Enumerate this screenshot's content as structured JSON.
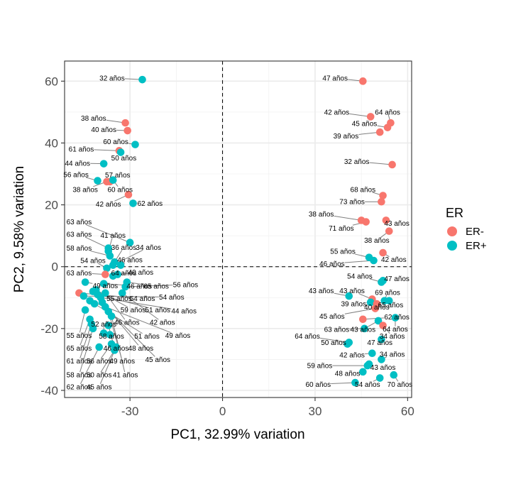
{
  "chart_data": {
    "type": "scatter",
    "title": "",
    "xlabel": "PC1, 32.99% variation",
    "ylabel": "PC2, 9.58% variation",
    "xlim": [
      -51.2,
      61.3
    ],
    "ylim": [
      -42.3,
      66.5
    ],
    "xticks": [
      -30,
      0,
      30,
      60
    ],
    "yticks": [
      -40,
      -20,
      0,
      20,
      40,
      60
    ],
    "xtick_labels": [
      "-30",
      "0",
      "30",
      "60"
    ],
    "ytick_labels": [
      "-40",
      "-20",
      "0",
      "20",
      "40",
      "60"
    ],
    "reference_lines": {
      "x": 0,
      "y": 0,
      "style": "dashed"
    },
    "legend": {
      "title": "ER",
      "position": "right",
      "entries": [
        {
          "name": "ER-",
          "color": "#F8766D"
        },
        {
          "name": "ER+",
          "color": "#00BFC4"
        }
      ]
    },
    "points": [
      {
        "x": -26.0,
        "y": 60.5,
        "group": "ER+",
        "label": "32 años",
        "lx": -35.8,
        "ly": 61.0
      },
      {
        "x": -31.5,
        "y": 46.5,
        "group": "ER-",
        "label": "38 años",
        "lx": -41.8,
        "ly": 48.0
      },
      {
        "x": -30.8,
        "y": 44.0,
        "group": "ER-",
        "label": "40 años",
        "lx": -38.5,
        "ly": 44.3
      },
      {
        "x": -28.3,
        "y": 39.5,
        "group": "ER+",
        "label": "60 años",
        "lx": -34.6,
        "ly": 40.5
      },
      {
        "x": -33.5,
        "y": 37.5,
        "group": "ER-",
        "label": "61 años",
        "lx": -45.8,
        "ly": 38.0
      },
      {
        "x": -33.0,
        "y": 37.0,
        "group": "ER+",
        "label": "50 años",
        "lx": -32.0,
        "ly": 35.2
      },
      {
        "x": -38.5,
        "y": 33.3,
        "group": "ER+",
        "label": "44 años",
        "lx": -47.0,
        "ly": 33.5
      },
      {
        "x": -40.5,
        "y": 27.8,
        "group": "ER+",
        "label": "56 años",
        "lx": -47.5,
        "ly": 29.8
      },
      {
        "x": -37.5,
        "y": 27.5,
        "group": "ER-",
        "label": "38 años",
        "lx": -44.5,
        "ly": 25.0
      },
      {
        "x": -36.5,
        "y": 27.5,
        "group": "ER-",
        "label": "57 años",
        "lx": -34.0,
        "ly": 29.7
      },
      {
        "x": -35.5,
        "y": 28.0,
        "group": "ER+",
        "label": "60 años",
        "lx": -33.2,
        "ly": 25.0
      },
      {
        "x": -30.5,
        "y": 23.3,
        "group": "ER-",
        "label": "42 años",
        "lx": -37.0,
        "ly": 20.3
      },
      {
        "x": -29.0,
        "y": 20.5,
        "group": "ER+",
        "label": "62 años",
        "lx": -23.5,
        "ly": 20.5
      },
      {
        "x": -30.0,
        "y": 7.8,
        "group": "ER+",
        "label": "63 años",
        "lx": -46.5,
        "ly": 14.5
      },
      {
        "x": -37.0,
        "y": 6.0,
        "group": "ER+",
        "label": "63 años",
        "lx": -46.5,
        "ly": 10.5
      },
      {
        "x": -37.0,
        "y": 5.0,
        "group": "ER+",
        "label": "41 años",
        "lx": -35.5,
        "ly": 10.2
      },
      {
        "x": -36.5,
        "y": 3.5,
        "group": "ER+",
        "label": "58 años",
        "lx": -46.5,
        "ly": 6.0
      },
      {
        "x": -35.0,
        "y": 1.5,
        "group": "ER+",
        "label": "36 años",
        "lx": -32.0,
        "ly": 6.3
      },
      {
        "x": -35.5,
        "y": 0.5,
        "group": "ER+",
        "label": "34 años",
        "lx": -24.0,
        "ly": 6.3
      },
      {
        "x": -37.5,
        "y": -0.5,
        "group": "ER+",
        "label": "54 años",
        "lx": -42.0,
        "ly": 2.0
      },
      {
        "x": -33.0,
        "y": 0.5,
        "group": "ER+",
        "label": "46 años",
        "lx": -30.0,
        "ly": 2.2
      },
      {
        "x": -38.0,
        "y": -2.5,
        "group": "ER-",
        "label": "63 años",
        "lx": -46.5,
        "ly": -2.0
      },
      {
        "x": -35.5,
        "y": -3.0,
        "group": "ER+",
        "label": "64 años",
        "lx": -32.0,
        "ly": -2.0
      },
      {
        "x": -34.0,
        "y": -2.5,
        "group": "ER+",
        "label": "40 años",
        "lx": -26.5,
        "ly": -1.8
      },
      {
        "x": -44.5,
        "y": -5.0,
        "group": "ER+",
        "label": "49 años",
        "lx": -38.0,
        "ly": -6.2
      },
      {
        "x": -38.5,
        "y": -5.5,
        "group": "ER+",
        "label": "46 años",
        "lx": -27.0,
        "ly": -6.3
      },
      {
        "x": -31.0,
        "y": -5.0,
        "group": "ER+",
        "label": "65 años",
        "lx": -21.5,
        "ly": -6.3
      },
      {
        "x": -31.5,
        "y": -6.5,
        "group": "ER+",
        "label": "56 años",
        "lx": -12.0,
        "ly": -5.8
      },
      {
        "x": -42.0,
        "y": -8.0,
        "group": "ER+",
        "label": "55 años",
        "lx": -33.5,
        "ly": -10.3
      },
      {
        "x": -46.5,
        "y": -8.5,
        "group": "ER-",
        "label": "54 años",
        "lx": -26.0,
        "ly": -10.3
      },
      {
        "x": -45.0,
        "y": -9.5,
        "group": "ER+",
        "label": "54 años",
        "lx": -16.5,
        "ly": -9.8
      },
      {
        "x": -41.0,
        "y": -7.5,
        "group": "ER+",
        "label": "59 años",
        "lx": -29.0,
        "ly": -14.0
      },
      {
        "x": -40.5,
        "y": -9.0,
        "group": "ER+",
        "label": "51 años",
        "lx": -21.0,
        "ly": -14.0
      },
      {
        "x": -39.5,
        "y": -10.0,
        "group": "ER+",
        "label": "44 años",
        "lx": -12.5,
        "ly": -14.3
      },
      {
        "x": -38.0,
        "y": -8.5,
        "group": "ER+",
        "label": "46 años",
        "lx": -31.0,
        "ly": -18.0
      },
      {
        "x": -32.5,
        "y": -8.5,
        "group": "ER+",
        "label": "42 años",
        "lx": -19.5,
        "ly": -18.0
      },
      {
        "x": -43.0,
        "y": -11.0,
        "group": "ER+",
        "label": "49 años",
        "lx": -14.5,
        "ly": -22.2
      },
      {
        "x": -41.5,
        "y": -12.0,
        "group": "ER+",
        "label": "51 años",
        "lx": -24.5,
        "ly": -22.5
      },
      {
        "x": -39.0,
        "y": -11.5,
        "group": "ER+",
        "label": "48 años",
        "lx": -26.5,
        "ly": -26.3
      },
      {
        "x": -38.0,
        "y": -13.0,
        "group": "ER+",
        "label": "45 años",
        "lx": -21.0,
        "ly": -30.0
      },
      {
        "x": -37.0,
        "y": -14.5,
        "group": "ER+",
        "label": "49 años",
        "lx": -32.5,
        "ly": -30.5
      },
      {
        "x": -36.0,
        "y": -16.0,
        "group": "ER+",
        "label": "41 años",
        "lx": -31.5,
        "ly": -35.0
      },
      {
        "x": -44.5,
        "y": -14.0,
        "group": "ER+",
        "label": "55 años",
        "lx": -46.5,
        "ly": -22.2
      },
      {
        "x": -43.0,
        "y": -17.0,
        "group": "ER+",
        "label": "65 años",
        "lx": -46.5,
        "ly": -26.3
      },
      {
        "x": -42.5,
        "y": -18.5,
        "group": "ER+",
        "label": "61 años",
        "lx": -46.5,
        "ly": -30.5
      },
      {
        "x": -42.0,
        "y": -20.0,
        "group": "ER+",
        "label": "58 años",
        "lx": -46.5,
        "ly": -35.0
      },
      {
        "x": -40.0,
        "y": -26.0,
        "group": "ER+",
        "label": "62 años",
        "lx": -46.5,
        "ly": -38.8
      },
      {
        "x": -38.5,
        "y": -21.5,
        "group": "ER+",
        "label": "52 años",
        "lx": -38.5,
        "ly": -18.5
      },
      {
        "x": -37.0,
        "y": -19.0,
        "group": "ER+",
        "label": "58 años",
        "lx": -36.0,
        "ly": -22.5
      },
      {
        "x": -36.5,
        "y": -22.0,
        "group": "ER+",
        "label": "46 años",
        "lx": -34.5,
        "ly": -26.3
      },
      {
        "x": -36.0,
        "y": -25.0,
        "group": "ER+",
        "label": "56 años",
        "lx": -40.0,
        "ly": -30.5
      },
      {
        "x": -35.0,
        "y": -27.0,
        "group": "ER+",
        "label": "50 años",
        "lx": -40.0,
        "ly": -35.0
      },
      {
        "x": -34.5,
        "y": -26.0,
        "group": "ER+",
        "label": "45 años",
        "lx": -40.0,
        "ly": -38.8
      },
      {
        "x": 45.5,
        "y": 60.0,
        "group": "ER-",
        "label": "47 años",
        "lx": 36.5,
        "ly": 61.0
      },
      {
        "x": 48.0,
        "y": 48.5,
        "group": "ER-",
        "label": "42 años",
        "lx": 37.0,
        "ly": 50.0
      },
      {
        "x": 54.5,
        "y": 46.5,
        "group": "ER-",
        "label": "64 años",
        "lx": 53.5,
        "ly": 50.0
      },
      {
        "x": 53.5,
        "y": 45.0,
        "group": "ER-",
        "label": "45 años",
        "lx": 46.0,
        "ly": 46.3
      },
      {
        "x": 51.0,
        "y": 43.5,
        "group": "ER-",
        "label": "39 años",
        "lx": 40.0,
        "ly": 42.3
      },
      {
        "x": 55.0,
        "y": 33.0,
        "group": "ER-",
        "label": "32 años",
        "lx": 43.5,
        "ly": 34.0
      },
      {
        "x": 52.0,
        "y": 23.0,
        "group": "ER-",
        "label": "68 años",
        "lx": 45.5,
        "ly": 25.0
      },
      {
        "x": 51.5,
        "y": 21.0,
        "group": "ER-",
        "label": "73 años",
        "lx": 42.0,
        "ly": 21.0
      },
      {
        "x": 45.0,
        "y": 15.0,
        "group": "ER-",
        "label": "38 años",
        "lx": 32.0,
        "ly": 17.0
      },
      {
        "x": 46.5,
        "y": 14.5,
        "group": "ER-",
        "label": "71 años",
        "lx": 38.5,
        "ly": 12.5
      },
      {
        "x": 53.0,
        "y": 15.0,
        "group": "ER-",
        "label": "43 años",
        "lx": 56.5,
        "ly": 14.0
      },
      {
        "x": 54.0,
        "y": 11.5,
        "group": "ER-",
        "label": "38 años",
        "lx": 50.0,
        "ly": 8.5
      },
      {
        "x": 52.0,
        "y": 4.5,
        "group": "ER-",
        "label": "42 años",
        "lx": 55.5,
        "ly": 2.3
      },
      {
        "x": 47.5,
        "y": 3.0,
        "group": "ER+",
        "label": "55 años",
        "lx": 39.0,
        "ly": 5.0
      },
      {
        "x": 49.0,
        "y": 2.0,
        "group": "ER+",
        "label": "46 años",
        "lx": 35.5,
        "ly": 1.0
      },
      {
        "x": 51.5,
        "y": -5.0,
        "group": "ER+",
        "label": "54 años",
        "lx": 44.5,
        "ly": -3.0
      },
      {
        "x": 52.0,
        "y": -4.5,
        "group": "ER+",
        "label": "47 años",
        "lx": 56.5,
        "ly": -3.8
      },
      {
        "x": 41.0,
        "y": -9.5,
        "group": "ER+",
        "label": "43 años",
        "lx": 32.0,
        "ly": -7.8
      },
      {
        "x": 48.5,
        "y": -10.5,
        "group": "ER-",
        "label": "43 años",
        "lx": 42.0,
        "ly": -7.8
      },
      {
        "x": 52.5,
        "y": -11.0,
        "group": "ER+",
        "label": "69 años",
        "lx": 53.5,
        "ly": -8.3
      },
      {
        "x": 48.0,
        "y": -11.5,
        "group": "ER+",
        "label": "39 años",
        "lx": 42.5,
        "ly": -12.0
      },
      {
        "x": 50.0,
        "y": -12.0,
        "group": "ER-",
        "label": "40 años",
        "lx": 50.0,
        "ly": -13.0
      },
      {
        "x": 54.0,
        "y": -11.0,
        "group": "ER+",
        "label": "65 años",
        "lx": 54.5,
        "ly": -12.3
      },
      {
        "x": 49.5,
        "y": -13.5,
        "group": "ER-",
        "label": "45 años",
        "lx": 35.5,
        "ly": -16.0
      },
      {
        "x": 45.5,
        "y": -17.0,
        "group": "ER-",
        "label": "62 años",
        "lx": 56.5,
        "ly": -16.3
      },
      {
        "x": 56.0,
        "y": -16.5,
        "group": "ER+",
        "label": "64 años",
        "lx": 56.0,
        "ly": -20.2
      },
      {
        "x": 50.5,
        "y": -17.5,
        "group": "ER+",
        "label": "43 años",
        "lx": 45.5,
        "ly": -20.3
      },
      {
        "x": 46.0,
        "y": -20.0,
        "group": "ER+",
        "label": "63 años",
        "lx": 37.0,
        "ly": -20.3
      },
      {
        "x": 52.0,
        "y": -19.0,
        "group": "ER-",
        "label": "34 años",
        "lx": 55.0,
        "ly": -22.5
      },
      {
        "x": 41.0,
        "y": -24.5,
        "group": "ER+",
        "label": "64 años",
        "lx": 27.5,
        "ly": -22.5
      },
      {
        "x": 40.5,
        "y": -25.0,
        "group": "ER+",
        "label": "50 años",
        "lx": 36.0,
        "ly": -24.5
      },
      {
        "x": 51.5,
        "y": -23.5,
        "group": "ER+",
        "label": "47 años",
        "lx": 51.0,
        "ly": -24.5
      },
      {
        "x": 48.5,
        "y": -28.0,
        "group": "ER+",
        "label": "42 años",
        "lx": 42.0,
        "ly": -28.5
      },
      {
        "x": 51.5,
        "y": -30.0,
        "group": "ER+",
        "label": "34 años",
        "lx": 55.0,
        "ly": -28.3
      },
      {
        "x": 47.0,
        "y": -32.0,
        "group": "ER+",
        "label": "59 años",
        "lx": 31.5,
        "ly": -32.0
      },
      {
        "x": 47.5,
        "y": -31.5,
        "group": "ER+",
        "label": "43 años",
        "lx": 52.0,
        "ly": -32.5
      },
      {
        "x": 45.5,
        "y": -34.0,
        "group": "ER+",
        "label": "48 años",
        "lx": 40.5,
        "ly": -34.5
      },
      {
        "x": 55.5,
        "y": -35.0,
        "group": "ER+",
        "label": "70 años",
        "lx": 57.5,
        "ly": -38.0
      },
      {
        "x": 43.0,
        "y": -37.5,
        "group": "ER+",
        "label": "60 años",
        "lx": 31.0,
        "ly": -38.0
      },
      {
        "x": 51.0,
        "y": -36.0,
        "group": "ER+",
        "label": "54 años",
        "lx": 47.0,
        "ly": -38.0
      }
    ]
  }
}
